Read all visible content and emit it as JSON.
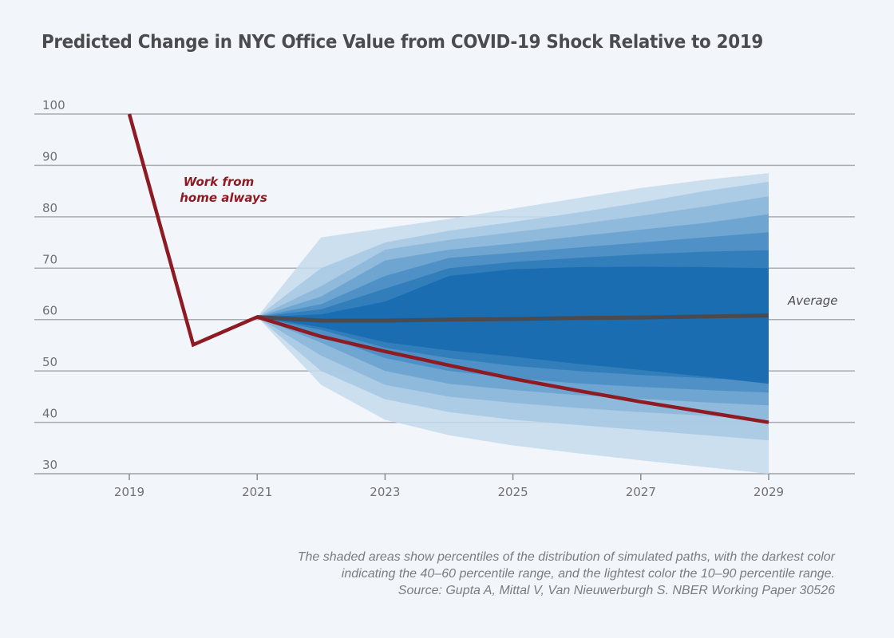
{
  "chart_data": {
    "type": "line",
    "title": "Predicted Change in NYC Office Value from COVID-19 Shock Relative to 2019",
    "xlabel": "",
    "ylabel": "",
    "xlim": [
      2017.5,
      2030.3
    ],
    "ylim": [
      30,
      100
    ],
    "grid": true,
    "y_ticks": [
      100,
      90,
      80,
      70,
      60,
      50,
      40,
      30
    ],
    "x_ticks": [
      2019,
      2021,
      2023,
      2025,
      2027,
      2029
    ],
    "series": [
      {
        "name": "Work from home always",
        "color": "#8e1a22",
        "x": [
          2019,
          2020,
          2021,
          2022,
          2023,
          2024,
          2025,
          2026,
          2027,
          2028,
          2029
        ],
        "values": [
          100,
          55.1,
          60.5,
          56.7,
          53.8,
          51.1,
          48.5,
          46.2,
          44.0,
          42.0,
          40.0
        ]
      },
      {
        "name": "Average",
        "color": "#4a4b50",
        "x": [
          2021,
          2022,
          2023,
          2024,
          2025,
          2026,
          2027,
          2028,
          2029
        ],
        "values": [
          60.5,
          59.8,
          59.8,
          60.0,
          60.1,
          60.3,
          60.4,
          60.6,
          60.8
        ]
      }
    ],
    "percentile_bands": {
      "x": [
        2021,
        2022,
        2023,
        2024,
        2025,
        2026,
        2027,
        2028,
        2029
      ],
      "bands": [
        {
          "name": "10-90 percentile",
          "upper": [
            60.5,
            76.0,
            77.8,
            79.6,
            81.6,
            83.6,
            85.6,
            87.2,
            88.5
          ],
          "lower": [
            60.5,
            47.3,
            40.5,
            37.5,
            35.5,
            34.0,
            32.6,
            31.3,
            30.0
          ]
        },
        {
          "name": "15-85 percentile",
          "upper": [
            60.5,
            70.0,
            75.0,
            77.3,
            79.0,
            80.8,
            82.8,
            85.0,
            86.8
          ],
          "lower": [
            60.5,
            50.0,
            44.5,
            42.0,
            40.5,
            39.5,
            38.5,
            37.5,
            36.5
          ]
        },
        {
          "name": "20-80 percentile",
          "upper": [
            60.5,
            66.5,
            73.6,
            75.5,
            77.0,
            78.5,
            80.2,
            82.0,
            84.0
          ],
          "lower": [
            60.5,
            53.0,
            47.3,
            45.0,
            43.8,
            42.8,
            42.0,
            41.3,
            40.5
          ]
        },
        {
          "name": "25-75 percentile",
          "upper": [
            60.5,
            64.5,
            71.5,
            73.6,
            74.8,
            76.2,
            77.5,
            78.8,
            80.5
          ],
          "lower": [
            60.5,
            55.5,
            50.0,
            47.5,
            46.3,
            45.3,
            44.6,
            43.9,
            43.3
          ]
        },
        {
          "name": "30-70 percentile",
          "upper": [
            60.5,
            63.0,
            68.5,
            72.0,
            73.0,
            74.0,
            75.0,
            76.0,
            77.0
          ],
          "lower": [
            60.5,
            57.0,
            52.5,
            50.0,
            48.6,
            47.6,
            46.9,
            46.3,
            45.8
          ]
        },
        {
          "name": "35-65 percentile",
          "upper": [
            60.5,
            62.0,
            66.0,
            70.0,
            71.2,
            72.0,
            72.7,
            73.2,
            73.5
          ],
          "lower": [
            60.5,
            58.0,
            54.5,
            52.5,
            51.0,
            50.0,
            49.2,
            48.6,
            48.0
          ]
        },
        {
          "name": "40-60 percentile",
          "upper": [
            60.5,
            61.0,
            63.5,
            68.5,
            69.8,
            70.2,
            70.3,
            70.2,
            70.0
          ],
          "lower": [
            60.5,
            58.5,
            55.6,
            54.0,
            52.8,
            51.4,
            50.2,
            48.9,
            47.5
          ]
        }
      ],
      "colors": [
        "#c6dbec",
        "#a9c9e3",
        "#8cb8da",
        "#6ba3cf",
        "#4b8fc4",
        "#2f7cb9",
        "#176cb0"
      ]
    },
    "annotations": [
      {
        "text": "Work from",
        "text2": "home always",
        "series": "Work from home always"
      },
      {
        "text": "Average",
        "series": "Average"
      }
    ]
  },
  "footnote": {
    "line1": "The shaded areas show percentiles of the distribution of simulated paths, with the darkest color",
    "line2": "indicating the 40–60 percentile range, and the lightest color the 10–90 percentile range.",
    "line3": "Source: Gupta A, Mittal V, Van Nieuwerburgh S. NBER Working Paper 30526"
  }
}
